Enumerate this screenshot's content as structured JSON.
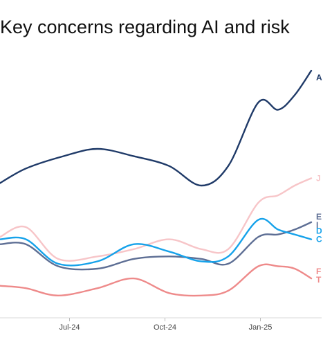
{
  "chart_data": {
    "type": "line",
    "title": "Key concerns regarding AI and risk",
    "xlabel": "",
    "ylabel": "",
    "x_ticks": [
      "Jul-24",
      "Oct-24",
      "Jan-25"
    ],
    "x_range": [
      "2024-04-25",
      "2025-03-01"
    ],
    "ylim": [
      0,
      100
    ],
    "grid": false,
    "legend": "none",
    "series": [
      {
        "name": "A",
        "color": "#1f3a68",
        "points": [
          [
            "2024-04-25",
            52
          ],
          [
            "2024-05-20",
            58
          ],
          [
            "2024-06-25",
            63
          ],
          [
            "2024-07-28",
            66
          ],
          [
            "2024-09-01",
            63
          ],
          [
            "2024-10-05",
            59
          ],
          [
            "2024-11-05",
            51
          ],
          [
            "2024-12-01",
            59
          ],
          [
            "2024-12-30",
            85
          ],
          [
            "2025-01-18",
            82
          ],
          [
            "2025-02-03",
            88
          ],
          [
            "2025-02-19",
            98
          ]
        ]
      },
      {
        "name": "J",
        "color": "#f7c5c8",
        "points": [
          [
            "2024-04-25",
            30
          ],
          [
            "2024-05-20",
            34
          ],
          [
            "2024-06-20",
            21
          ],
          [
            "2024-07-28",
            22
          ],
          [
            "2024-09-01",
            25
          ],
          [
            "2024-10-05",
            29
          ],
          [
            "2024-11-05",
            25
          ],
          [
            "2024-12-01",
            25
          ],
          [
            "2024-12-30",
            44
          ],
          [
            "2025-01-18",
            47
          ],
          [
            "2025-02-03",
            51
          ],
          [
            "2025-02-19",
            54
          ]
        ]
      },
      {
        "name": "E",
        "color": "#5d6e94",
        "points": [
          [
            "2024-04-25",
            27
          ],
          [
            "2024-05-20",
            27
          ],
          [
            "2024-06-20",
            18
          ],
          [
            "2024-07-28",
            17
          ],
          [
            "2024-09-01",
            21
          ],
          [
            "2024-10-05",
            22
          ],
          [
            "2024-11-05",
            21
          ],
          [
            "2024-12-01",
            19
          ],
          [
            "2024-12-30",
            30
          ],
          [
            "2025-01-18",
            31
          ],
          [
            "2025-02-03",
            33
          ],
          [
            "2025-02-19",
            36
          ]
        ]
      },
      {
        "name": "I",
        "color": "#5d6e94",
        "points": []
      },
      {
        "name": "D",
        "color": "#16a2ea",
        "points": [
          [
            "2024-04-25",
            29
          ],
          [
            "2024-05-20",
            29
          ],
          [
            "2024-06-20",
            19
          ],
          [
            "2024-07-28",
            20
          ],
          [
            "2024-09-01",
            27
          ],
          [
            "2024-10-05",
            24
          ],
          [
            "2024-11-05",
            20
          ],
          [
            "2024-12-01",
            22
          ],
          [
            "2024-12-30",
            37
          ],
          [
            "2025-01-18",
            33
          ],
          [
            "2025-02-03",
            31
          ],
          [
            "2025-02-19",
            29
          ]
        ]
      },
      {
        "name": "C",
        "color": "#16a2ea",
        "points": []
      },
      {
        "name": "F",
        "color": "#ee8a8a",
        "points": [
          [
            "2024-04-25",
            10
          ],
          [
            "2024-05-20",
            9
          ],
          [
            "2024-06-20",
            6
          ],
          [
            "2024-07-28",
            9
          ],
          [
            "2024-09-01",
            13
          ],
          [
            "2024-10-05",
            7
          ],
          [
            "2024-11-05",
            6
          ],
          [
            "2024-12-01",
            8
          ],
          [
            "2024-12-30",
            18
          ],
          [
            "2025-01-18",
            18
          ],
          [
            "2025-02-03",
            17
          ],
          [
            "2025-02-19",
            13
          ]
        ]
      },
      {
        "name": "T",
        "color": "#ee8a8a",
        "points": []
      }
    ]
  }
}
